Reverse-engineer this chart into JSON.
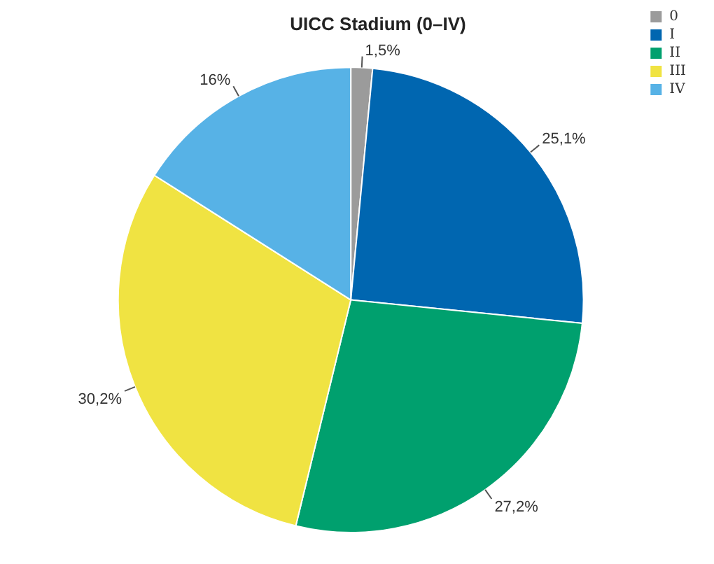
{
  "chart_data": {
    "type": "pie",
    "title": "UICC Stadium (0–IV)",
    "categories": [
      "0",
      "I",
      "II",
      "III",
      "IV"
    ],
    "values": [
      1.5,
      25.1,
      27.2,
      30.2,
      16
    ],
    "value_labels": [
      "1,5%",
      "25,1%",
      "27,2%",
      "30,2%",
      "16%"
    ],
    "colors": [
      "#9b9b9b",
      "#0066b0",
      "#00a06e",
      "#f0e342",
      "#57b2e6"
    ],
    "legend": "top right"
  }
}
